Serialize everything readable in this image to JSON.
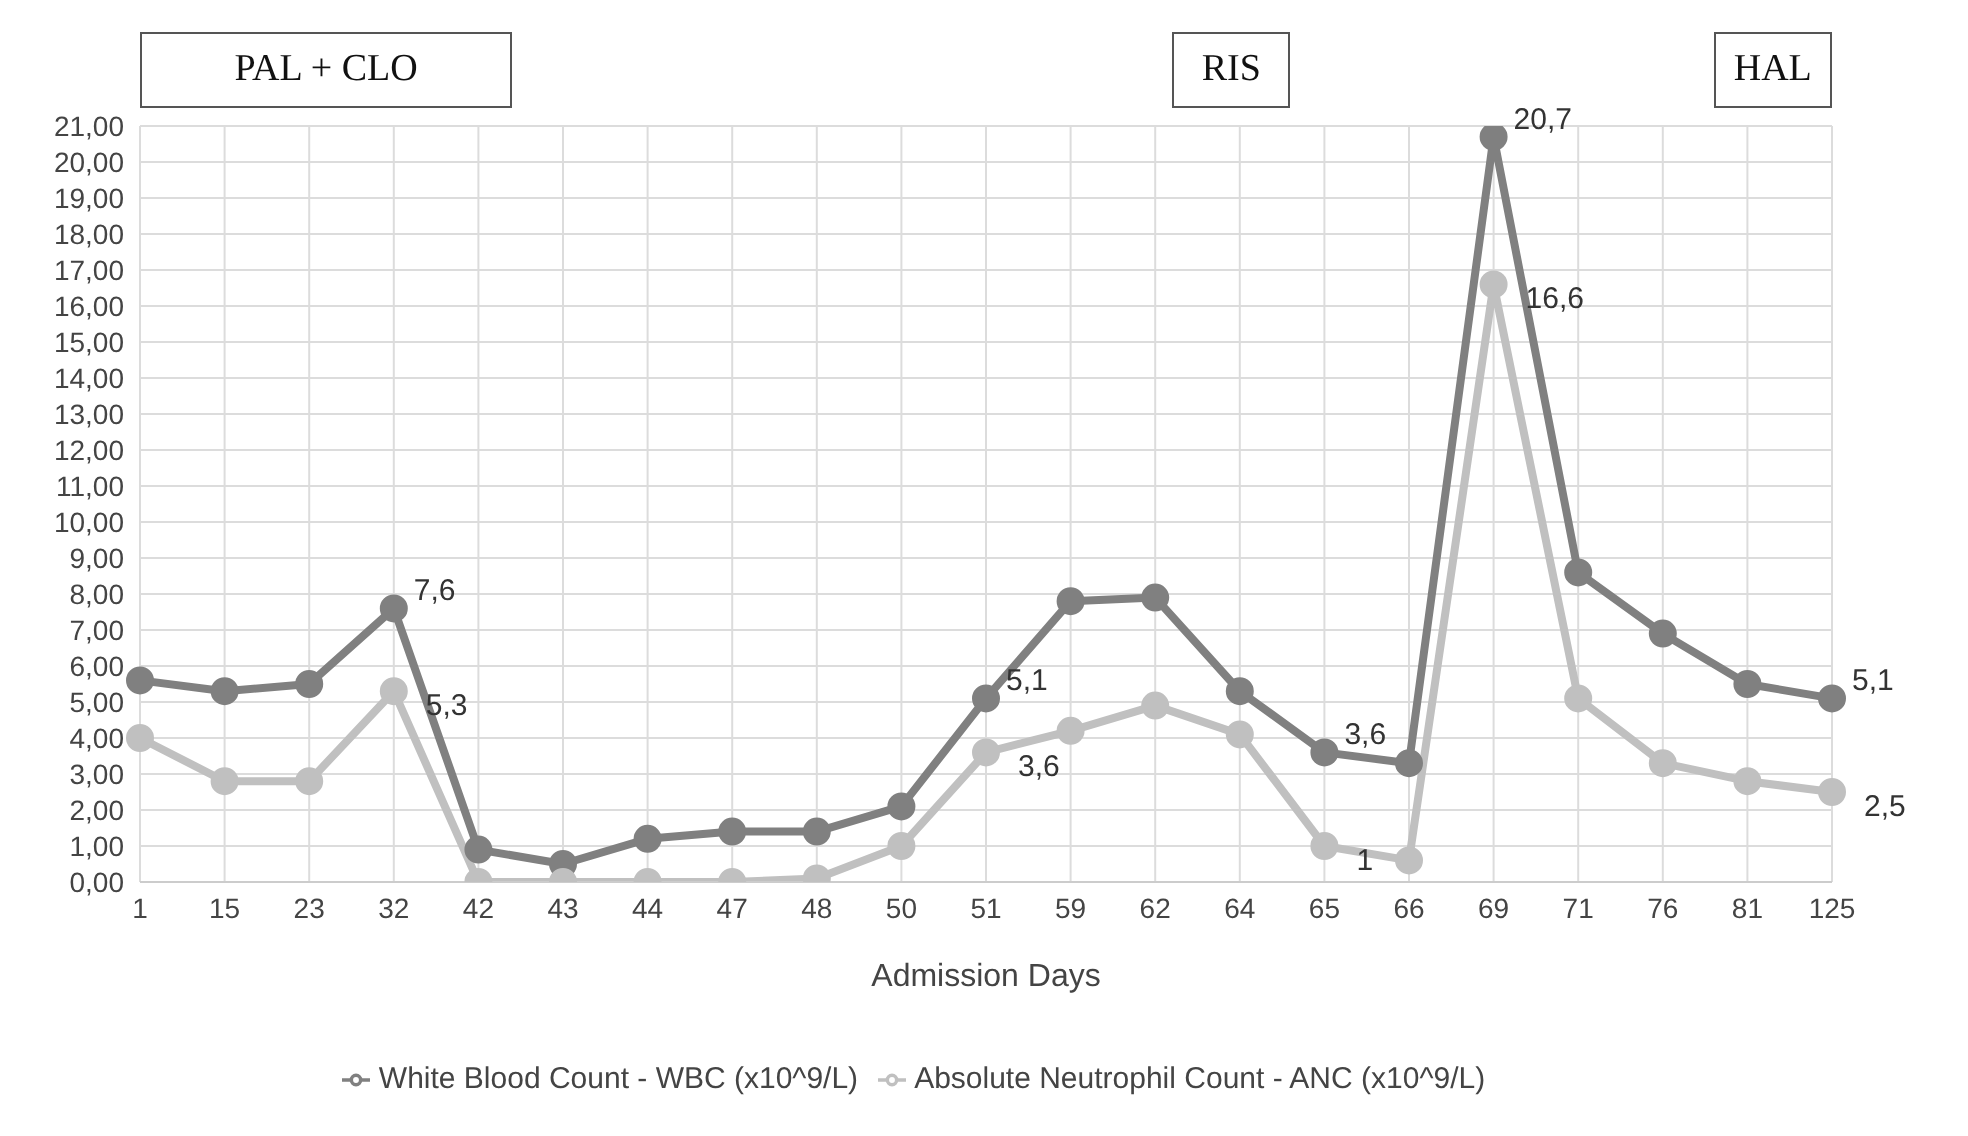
{
  "chart_data": {
    "type": "line",
    "xlabel": "Admission Days",
    "categories": [
      "1",
      "15",
      "23",
      "32",
      "42",
      "43",
      "44",
      "47",
      "48",
      "50",
      "51",
      "59",
      "62",
      "64",
      "65",
      "66",
      "69",
      "71",
      "76",
      "81",
      "125"
    ],
    "series": [
      {
        "name": "White Blood Count - WBC (x10^9/L)",
        "color": "#808080",
        "values": [
          5.6,
          5.3,
          5.5,
          7.6,
          0.9,
          0.5,
          1.2,
          1.4,
          1.4,
          2.1,
          5.1,
          7.8,
          7.9,
          5.3,
          3.6,
          3.3,
          20.7,
          8.6,
          6.9,
          5.5,
          5.1
        ],
        "value_labels": [
          null,
          null,
          null,
          "7,6",
          null,
          null,
          null,
          null,
          null,
          null,
          "5,1",
          null,
          null,
          null,
          "3,6",
          null,
          "20,7",
          null,
          null,
          null,
          "5,1"
        ]
      },
      {
        "name": "Absolute Neutrophil Count - ANC (x10^9/L)",
        "color": "#c0c0c0",
        "values": [
          4.0,
          2.8,
          2.8,
          5.3,
          0,
          0,
          0,
          0,
          0.1,
          1.0,
          3.6,
          4.2,
          4.9,
          4.1,
          1,
          0.6,
          16.6,
          5.1,
          3.3,
          2.8,
          2.5
        ],
        "value_labels": [
          null,
          null,
          null,
          "5,3",
          null,
          null,
          null,
          null,
          null,
          null,
          "3,6",
          null,
          null,
          null,
          "1",
          null,
          "16,6",
          null,
          null,
          null,
          "2,5"
        ]
      }
    ],
    "ylim": [
      0,
      21
    ],
    "yticks": [
      {
        "value": 0,
        "label": "0,00"
      },
      {
        "value": 1,
        "label": "1,00"
      },
      {
        "value": 2,
        "label": "2,00"
      },
      {
        "value": 3,
        "label": "3,00"
      },
      {
        "value": 4,
        "label": "4,00"
      },
      {
        "value": 5,
        "label": "5,00"
      },
      {
        "value": 6,
        "label": "6,00"
      },
      {
        "value": 7,
        "label": "7,00"
      },
      {
        "value": 8,
        "label": "8,00"
      },
      {
        "value": 9,
        "label": "9,00"
      },
      {
        "value": 10,
        "label": "10,00"
      },
      {
        "value": 11,
        "label": "11,00"
      },
      {
        "value": 12,
        "label": "12,00"
      },
      {
        "value": 13,
        "label": "13,00"
      },
      {
        "value": 14,
        "label": "14,00"
      },
      {
        "value": 15,
        "label": "15,00"
      },
      {
        "value": 16,
        "label": "16,00"
      },
      {
        "value": 17,
        "label": "17,00"
      },
      {
        "value": 18,
        "label": "18,00"
      },
      {
        "value": 19,
        "label": "19,00"
      },
      {
        "value": 20,
        "label": "20,00"
      },
      {
        "value": 21,
        "label": "21,00"
      }
    ],
    "annotations": [
      "PAL + CLO",
      "RIS",
      "HAL"
    ],
    "grid": true,
    "legend": "bottom",
    "marker": "circle",
    "line_style": "solid"
  }
}
